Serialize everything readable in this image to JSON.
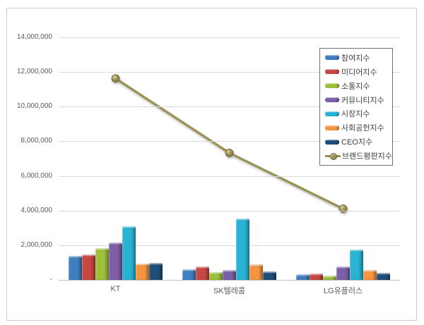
{
  "chart_data": {
    "type": "bar+line combo",
    "title": "",
    "categories": [
      "KT",
      "SK텔레콤",
      "LG유플러스"
    ],
    "bar_series": [
      {
        "name": "참여지수",
        "color": "#3f7fc1",
        "values": [
          1380000,
          620000,
          330000
        ]
      },
      {
        "name": "미디어지수",
        "color": "#c74742",
        "values": [
          1470000,
          780000,
          380000
        ]
      },
      {
        "name": "소통지수",
        "color": "#9dc13c",
        "values": [
          1820000,
          450000,
          230000
        ]
      },
      {
        "name": "커뮤니티지수",
        "color": "#7c5fa7",
        "values": [
          2160000,
          590000,
          760000
        ]
      },
      {
        "name": "시장지수",
        "color": "#29b2d2",
        "values": [
          3080000,
          3560000,
          1740000
        ]
      },
      {
        "name": "사회공헌지수",
        "color": "#f59540",
        "values": [
          950000,
          880000,
          580000
        ]
      },
      {
        "name": "CEO지수",
        "color": "#1f4e79",
        "values": [
          960000,
          470000,
          390000
        ]
      }
    ],
    "line_series": {
      "name": "브랜드평판지수",
      "color": "#9a9153",
      "marker_edge_color": "#6e663a",
      "marker_highlight_color": "#d6cfa4",
      "values": [
        11630000,
        7330000,
        4110000
      ]
    },
    "y_axis": {
      "min": 0,
      "max": 14000000,
      "step": 2000000,
      "tick_labels_top_to_bottom": [
        "14,000,000",
        "12,000,000",
        "10,000,000",
        "8,000,000",
        "6,000,000",
        "4,000,000",
        "2,000,000",
        "-"
      ]
    },
    "grid": true,
    "legend_position": "inside-top-right",
    "gridline_color": "#d9d9d9",
    "axis_line_color": "#bfbfbf",
    "tick_text_color": "#595959"
  }
}
